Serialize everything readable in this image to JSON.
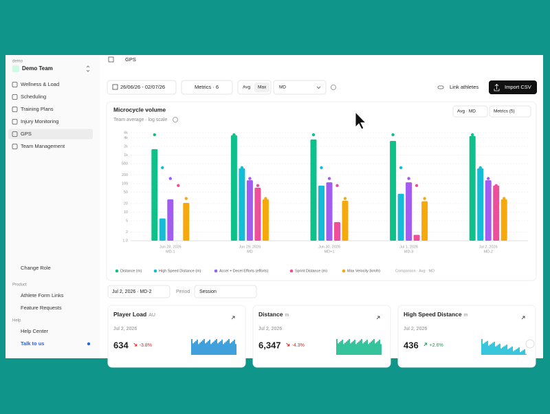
{
  "sidebar": {
    "org_label": "demo",
    "team": "Demo Team",
    "nav": [
      "Wellness & Load",
      "Scheduling",
      "Training Plans",
      "Injury Monitoring",
      "GPS",
      "Team Management"
    ],
    "change_role": "Change Role",
    "product_label": "Product",
    "product": [
      "Athlete Form Links",
      "Feature Requests"
    ],
    "help_label": "Help",
    "help": [
      "Help Center",
      "Talk to us"
    ]
  },
  "header": {
    "title": "GPS"
  },
  "toolbar": {
    "date_range": "26/06/26 - 02/07/26",
    "metrics": "Metrics · 6",
    "avg": "Avg",
    "max": "Max",
    "md": "MD",
    "link": "Link athletes",
    "import": "Import CSV"
  },
  "chart_controls": {
    "mode": "Avg · MD",
    "metrics": "Metrics (5)"
  },
  "chart_data": {
    "type": "bar",
    "title": "Microcycle volume",
    "subtitle": "Team average · log scale",
    "categories": [
      "Jun 28, 2026",
      "Jun 29, 2026",
      "Jun 30, 2026",
      "Jul 1, 2026",
      "Jul 2, 2026"
    ],
    "day_labels": [
      "MD-1",
      "MD",
      "MD+1",
      "MD-3",
      "MD-2"
    ],
    "series": [
      {
        "name": "Distance (m)",
        "color": "#10c08a",
        "values": [
          1600,
          4900,
          3500,
          3100,
          4600
        ],
        "comparison": 5100
      },
      {
        "name": "High Speed Distance (m)",
        "color": "#14bcd6",
        "values": [
          6,
          340,
          85,
          44,
          340
        ],
        "comparison": 360
      },
      {
        "name": "Accel + Decel Efforts (efforts)",
        "color": "#a35cf0",
        "values": [
          28,
          130,
          110,
          110,
          130
        ],
        "comparison": 150
      },
      {
        "name": "Sprint Distance (m)",
        "color": "#ee4f9a",
        "values": [
          null,
          72,
          4.5,
          1.6,
          85
        ],
        "comparison": 85
      },
      {
        "name": "Max Velocity (km/h)",
        "color": "#f5a90d",
        "values": [
          21,
          28,
          25,
          24,
          28
        ],
        "comparison": 30
      }
    ],
    "comparison_label": "Comparison · Avg · MD",
    "ylim": [
      1,
      6000
    ],
    "yticks": [
      {
        "value": 6000,
        "label": "6k"
      },
      {
        "value": 4000,
        "label": "4k"
      },
      {
        "value": 2000,
        "label": "2k"
      },
      {
        "value": 1000,
        "label": "1k"
      },
      500,
      200,
      100,
      50,
      20,
      10,
      5,
      2,
      {
        "value": 1,
        "label": "1.0"
      }
    ],
    "log_scale": true,
    "grid": true,
    "legend": "bottom"
  },
  "filters": {
    "day": "Jul 2, 2026 · MD-2",
    "period_label": "Period",
    "period": "Session"
  },
  "cards": [
    {
      "title": "Player Load",
      "unit": "AU",
      "date": "Jul 2, 2026",
      "value": "634",
      "change": "-3.8%"
    },
    {
      "title": "Distance",
      "unit": "m",
      "date": "Jul 2, 2026",
      "value": "6,347",
      "change": "-4.3%"
    },
    {
      "title": "High Speed Distance",
      "unit": "m",
      "date": "Jul 2, 2026",
      "value": "436",
      "change": "+2.6%"
    }
  ]
}
